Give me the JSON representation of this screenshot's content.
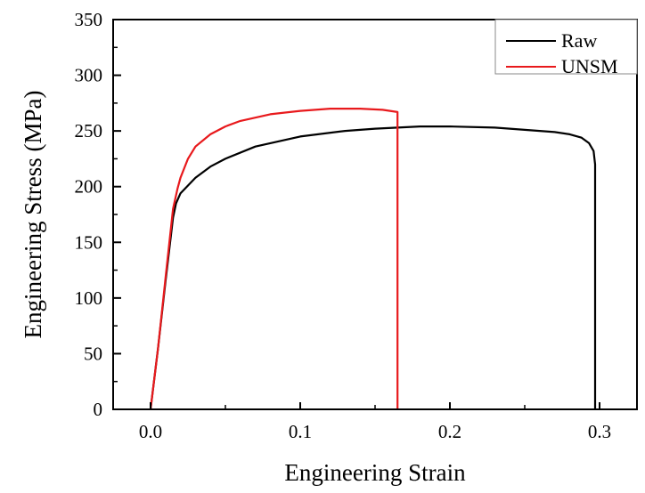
{
  "chart_data": {
    "type": "line",
    "title": "",
    "xlabel": "Engineering Strain",
    "ylabel": "Engineering Stress (MPa)",
    "xlim": [
      -0.025,
      0.325
    ],
    "ylim": [
      0,
      350
    ],
    "xticks": [
      0.0,
      0.1,
      0.2,
      0.3
    ],
    "xtick_labels": [
      "0.0",
      "0.1",
      "0.2",
      "0.3"
    ],
    "yticks": [
      0,
      50,
      100,
      150,
      200,
      250,
      300,
      350
    ],
    "ytick_labels": [
      "0",
      "50",
      "100",
      "150",
      "200",
      "250",
      "300",
      "350"
    ],
    "grid": false,
    "legend_position": "top-right",
    "series": [
      {
        "name": "Raw",
        "color": "#000000",
        "x": [
          0,
          0.005,
          0.01,
          0.015,
          0.017,
          0.02,
          0.03,
          0.04,
          0.05,
          0.07,
          0.1,
          0.13,
          0.15,
          0.18,
          0.2,
          0.23,
          0.25,
          0.27,
          0.28,
          0.288,
          0.293,
          0.296,
          0.297,
          0.297
        ],
        "y": [
          0,
          55,
          115,
          172,
          185,
          194,
          208,
          218,
          225,
          236,
          245,
          250,
          252,
          254,
          254,
          253,
          251,
          249,
          247,
          244,
          239,
          232,
          220,
          0
        ]
      },
      {
        "name": "UNSM",
        "color": "#e8191c",
        "x": [
          0,
          0.005,
          0.01,
          0.015,
          0.018,
          0.02,
          0.025,
          0.03,
          0.04,
          0.05,
          0.06,
          0.08,
          0.1,
          0.12,
          0.14,
          0.155,
          0.165,
          0.165
        ],
        "y": [
          0,
          55,
          118,
          180,
          198,
          208,
          225,
          236,
          247,
          254,
          259,
          265,
          268,
          270,
          270,
          269,
          267,
          0
        ]
      }
    ]
  }
}
